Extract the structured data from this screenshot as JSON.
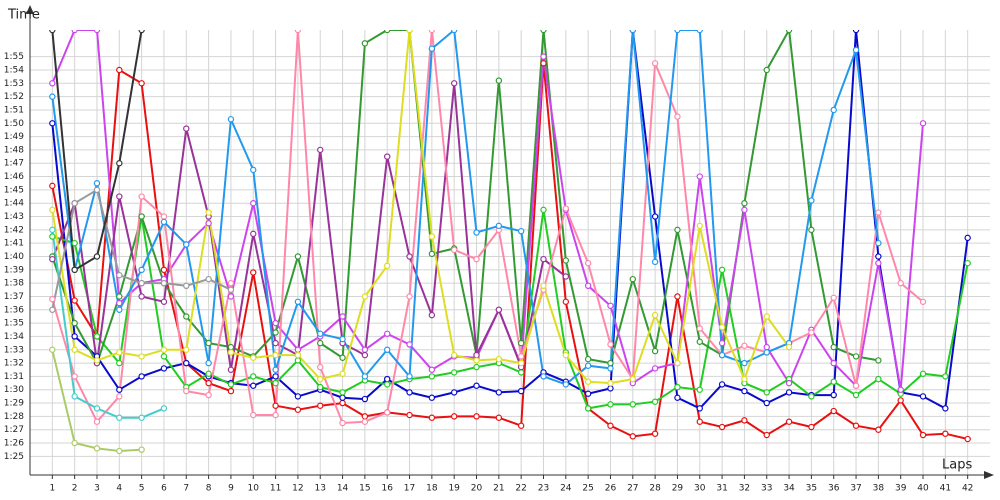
{
  "chart_data": {
    "type": "line",
    "y_label": "Time",
    "x_label": "Laps",
    "x": [
      1,
      2,
      3,
      4,
      5,
      6,
      7,
      8,
      9,
      10,
      11,
      12,
      13,
      14,
      15,
      16,
      17,
      18,
      19,
      20,
      21,
      22,
      23,
      24,
      25,
      26,
      27,
      28,
      29,
      30,
      31,
      32,
      33,
      34,
      35,
      36,
      37,
      38,
      39,
      40,
      41,
      42
    ],
    "xlim": [
      0,
      43
    ],
    "xticks": [
      1,
      2,
      3,
      4,
      5,
      6,
      7,
      8,
      9,
      10,
      11,
      12,
      13,
      14,
      15,
      16,
      17,
      18,
      19,
      20,
      21,
      22,
      23,
      24,
      25,
      26,
      27,
      28,
      29,
      30,
      31,
      32,
      33,
      34,
      35,
      36,
      37,
      38,
      39,
      40,
      41,
      42
    ],
    "ylim": [
      83.6,
      117
    ],
    "yticks": [
      {
        "value": 85,
        "label": "1:25"
      },
      {
        "value": 86,
        "label": "1:26"
      },
      {
        "value": 87,
        "label": "1:27"
      },
      {
        "value": 88,
        "label": "1:28"
      },
      {
        "value": 89,
        "label": "1:29"
      },
      {
        "value": 90,
        "label": "1:30"
      },
      {
        "value": 91,
        "label": "1:31"
      },
      {
        "value": 92,
        "label": "1:32"
      },
      {
        "value": 93,
        "label": "1:33"
      },
      {
        "value": 94,
        "label": "1:34"
      },
      {
        "value": 95,
        "label": "1:35"
      },
      {
        "value": 96,
        "label": "1:36"
      },
      {
        "value": 97,
        "label": "1:37"
      },
      {
        "value": 98,
        "label": "1:38"
      },
      {
        "value": 99,
        "label": "1:39"
      },
      {
        "value": 100,
        "label": "1:40"
      },
      {
        "value": 101,
        "label": "1:41"
      },
      {
        "value": 102,
        "label": "1:42"
      },
      {
        "value": 103,
        "label": "1:43"
      },
      {
        "value": 104,
        "label": "1:44"
      },
      {
        "value": 105,
        "label": "1:45"
      },
      {
        "value": 106,
        "label": "1:46"
      },
      {
        "value": 107,
        "label": "1:47"
      },
      {
        "value": 108,
        "label": "1:48"
      },
      {
        "value": 109,
        "label": "1:49"
      },
      {
        "value": 110,
        "label": "1:50"
      },
      {
        "value": 111,
        "label": "1:51"
      },
      {
        "value": 112,
        "label": "1:52"
      },
      {
        "value": 113,
        "label": "1:53"
      },
      {
        "value": 114,
        "label": "1:54"
      },
      {
        "value": 115,
        "label": "1:55"
      }
    ],
    "grid": true,
    "series": [
      {
        "color": "#e81010",
        "values": [
          105.3,
          96.7,
          94,
          114,
          113,
          99,
          92,
          90.5,
          89.9,
          98.8,
          88.8,
          88.5,
          88.8,
          89,
          88,
          88.3,
          88.1,
          87.9,
          88,
          88,
          87.9,
          87.3,
          114.5,
          96.6,
          88.6,
          87.3,
          86.5,
          86.7,
          97,
          87.6,
          87.2,
          87.7,
          86.6,
          87.6,
          87.2,
          88.4,
          87.3,
          87,
          89.2,
          86.6,
          86.7,
          86.3
        ]
      },
      {
        "color": "#0a0acc",
        "values": [
          110,
          94,
          92.5,
          90,
          91,
          91.6,
          92,
          91,
          90.5,
          90.3,
          91,
          89.5,
          90,
          89.4,
          89.3,
          90.8,
          89.8,
          89.4,
          89.8,
          90.3,
          89.8,
          89.9,
          91.3,
          90.6,
          89.7,
          90.1,
          117,
          103,
          89.4,
          88.6,
          90.4,
          89.9,
          89,
          89.8,
          89.6,
          89.6,
          117,
          100,
          89.8,
          89.5,
          88.6,
          101.4
        ]
      },
      {
        "color": "#22cc22",
        "values": [
          101.5,
          101,
          94,
          92,
          103,
          92.5,
          90.2,
          91.2,
          90.4,
          91,
          90.5,
          92.2,
          90.2,
          89.8,
          90.7,
          90.4,
          90.8,
          91,
          91.3,
          91.7,
          92,
          91.3,
          103.5,
          92.8,
          88.6,
          88.9,
          88.9,
          89.1,
          90.2,
          90,
          99,
          90.5,
          89.8,
          90.8,
          89.5,
          90.6,
          89.6,
          90.8,
          89.7,
          91.2,
          91,
          99.5
        ]
      },
      {
        "color": "#339933",
        "values": [
          100,
          95,
          92,
          97,
          103,
          98,
          95.5,
          93.5,
          93.2,
          92.5,
          94.3,
          100,
          93.5,
          92.4,
          116,
          117,
          117,
          100.2,
          100.6,
          92.6,
          113.2,
          93.5,
          117,
          99.7,
          92.3,
          92,
          98.3,
          92.9,
          102,
          93.6,
          92.6,
          104,
          114,
          117,
          102,
          93.2,
          92.5,
          92.2,
          null,
          null,
          null,
          null
        ]
      },
      {
        "color": "#cc44ee",
        "values": [
          113,
          117,
          117,
          96.5,
          98,
          98.3,
          100.9,
          102.5,
          97,
          104,
          95,
          93,
          94,
          95.5,
          93,
          94.2,
          93.4,
          91.5,
          92.5,
          92.4,
          96,
          91.8,
          115,
          103.5,
          97.8,
          96.3,
          90.5,
          91.6,
          92,
          106,
          93.5,
          103.5,
          93.2,
          90.5,
          94.5,
          92,
          90.3,
          99.5,
          90,
          110,
          null,
          null
        ]
      },
      {
        "color": "#993399",
        "values": [
          99.8,
          104,
          92,
          104.5,
          97,
          96.6,
          109.6,
          103,
          91.5,
          101.7,
          93.5,
          92.6,
          108,
          93.5,
          92.6,
          107.5,
          100,
          95.6,
          113,
          92.6,
          96,
          91.7,
          99.8,
          98.5,
          null,
          null,
          null,
          null,
          null,
          null,
          null,
          null,
          null,
          null,
          null,
          null,
          null,
          null,
          null,
          null,
          null,
          null
        ]
      },
      {
        "color": "#ff88aa",
        "values": [
          96.8,
          91,
          87.6,
          89.5,
          104.5,
          103,
          89.9,
          89.6,
          98,
          88.1,
          88.1,
          117,
          91.7,
          87.5,
          87.6,
          88.3,
          97,
          117,
          100.5,
          99.8,
          102,
          92.5,
          97.5,
          103.6,
          99.5,
          93.4,
          90.8,
          114.5,
          110.5,
          94.6,
          92.6,
          93.3,
          92.8,
          93.5,
          94.3,
          96.9,
          90.3,
          103.3,
          98,
          96.6,
          null,
          null
        ]
      },
      {
        "color": "#2299ee",
        "values": [
          112,
          99,
          105.5,
          96,
          99,
          102.6,
          100.9,
          92,
          110.3,
          106.5,
          91.5,
          96.6,
          94.2,
          93.8,
          91,
          93,
          91,
          115.6,
          117,
          101.8,
          102.3,
          101.9,
          91,
          90.4,
          91.8,
          91.6,
          117,
          99.6,
          117,
          117,
          92.6,
          92,
          92.8,
          93.5,
          104.2,
          111,
          115.5,
          101,
          null,
          null,
          null,
          null
        ]
      },
      {
        "color": "#dddd22",
        "values": [
          103.5,
          93,
          92.2,
          92.8,
          92.5,
          93,
          93,
          103.3,
          92.8,
          92.4,
          92.6,
          92.6,
          90.8,
          91.2,
          97,
          99.3,
          117,
          101.5,
          92.6,
          92.2,
          92.3,
          92,
          97.8,
          92.6,
          90.6,
          90.5,
          90.8,
          95.6,
          92,
          102.3,
          94.7,
          90.8,
          95.5,
          93.2,
          null,
          null,
          null,
          null,
          null,
          null,
          null,
          null
        ]
      },
      {
        "color": "#aacc66",
        "values": [
          93,
          86,
          85.6,
          85.4,
          85.5,
          null,
          null,
          null,
          null,
          null,
          null,
          null,
          null,
          null,
          null,
          null,
          null,
          null,
          null,
          null,
          null,
          null,
          null,
          null,
          null,
          null,
          null,
          null,
          null,
          null,
          null,
          null,
          null,
          null,
          null,
          null,
          null,
          null,
          null,
          null,
          null,
          null
        ]
      },
      {
        "color": "#44cccc",
        "values": [
          102,
          89.5,
          88.6,
          87.9,
          87.9,
          88.6,
          null,
          null,
          null,
          null,
          null,
          null,
          null,
          null,
          null,
          null,
          null,
          null,
          null,
          null,
          null,
          null,
          null,
          null,
          null,
          null,
          null,
          null,
          null,
          null,
          null,
          null,
          null,
          null,
          null,
          null,
          null,
          null,
          null,
          null,
          null,
          null
        ]
      },
      {
        "color": "#999999",
        "values": [
          96,
          104,
          105,
          98.6,
          98,
          98,
          97.8,
          98.3,
          97.5,
          null,
          null,
          null,
          null,
          null,
          null,
          null,
          null,
          null,
          null,
          null,
          null,
          null,
          null,
          null,
          null,
          null,
          null,
          null,
          null,
          null,
          null,
          null,
          null,
          null,
          null,
          null,
          null,
          null,
          null,
          null,
          null,
          null
        ]
      },
      {
        "color": "#333333",
        "values": [
          117,
          99,
          100,
          107,
          117,
          null,
          null,
          null,
          null,
          null,
          null,
          null,
          null,
          null,
          null,
          null,
          null,
          null,
          null,
          null,
          null,
          null,
          null,
          null,
          null,
          null,
          null,
          null,
          null,
          null,
          null,
          null,
          null,
          null,
          null,
          null,
          null,
          null,
          null,
          null,
          null,
          null
        ]
      }
    ]
  }
}
